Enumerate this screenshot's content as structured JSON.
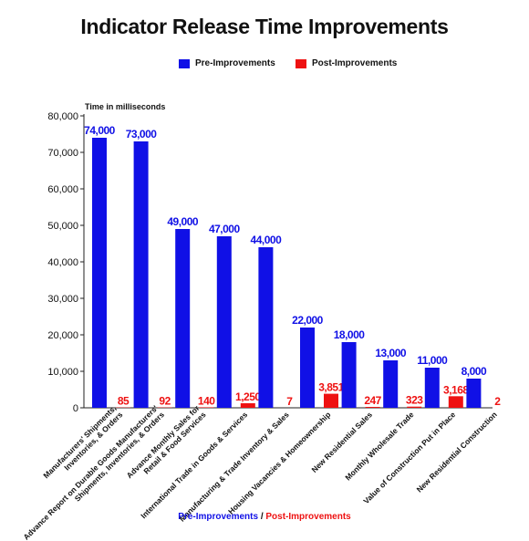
{
  "chart_data": {
    "type": "bar",
    "title": "Indicator Release Time Improvements",
    "ylabel": "Time in milliseconds",
    "xlabel": "",
    "ylim": [
      0,
      80000
    ],
    "yticks": [
      "0",
      "10,000",
      "20,000",
      "30,000",
      "40,000",
      "50,000",
      "60,000",
      "70,000",
      "80,000"
    ],
    "grid": false,
    "legend_position": "top-center",
    "categories": [
      [
        "Manufacturers' Shipments,",
        "Inventories, & Orders"
      ],
      [
        "Advance Report on Durable Goods Manufacturers'",
        "Shipments, Inventories, & Orders"
      ],
      [
        "Advance Monthly Sales for",
        "Retail & Food Services"
      ],
      [
        "International Trade in Goods & Services"
      ],
      [
        "Manufacturing & Trade Inventory & Sales"
      ],
      [
        "Housing Vacancies & Homeownership"
      ],
      [
        "New Residential Sales"
      ],
      [
        "Monthly Wholesale Trade"
      ],
      [
        "Value of Construction Put in Place"
      ],
      [
        "New Residential Construction"
      ]
    ],
    "series": [
      {
        "name": "Pre-Improvements",
        "color": "#1010e6",
        "values": [
          74000,
          73000,
          49000,
          47000,
          44000,
          22000,
          18000,
          13000,
          11000,
          8000
        ],
        "labels": [
          "74,000",
          "73,000",
          "49,000",
          "47,000",
          "44,000",
          "22,000",
          "18,000",
          "13,000",
          "11,000",
          "8,000"
        ]
      },
      {
        "name": "Post-Improvements",
        "color": "#ee1111",
        "values": [
          85,
          92,
          140,
          1250,
          7,
          3851,
          247,
          323,
          3168,
          2
        ],
        "labels": [
          "85",
          "92",
          "140",
          "1,250",
          "7",
          "3,851",
          "247",
          "323",
          "3,168",
          "2"
        ]
      }
    ]
  },
  "legend": {
    "pre": "Pre-Improvements",
    "post": "Post-Improvements",
    "pre_color": "#1010e6",
    "post_color": "#ee1111"
  },
  "footer": {
    "pre": "Pre-Improvements",
    "separator": " / ",
    "post": "Post-Improvements"
  }
}
